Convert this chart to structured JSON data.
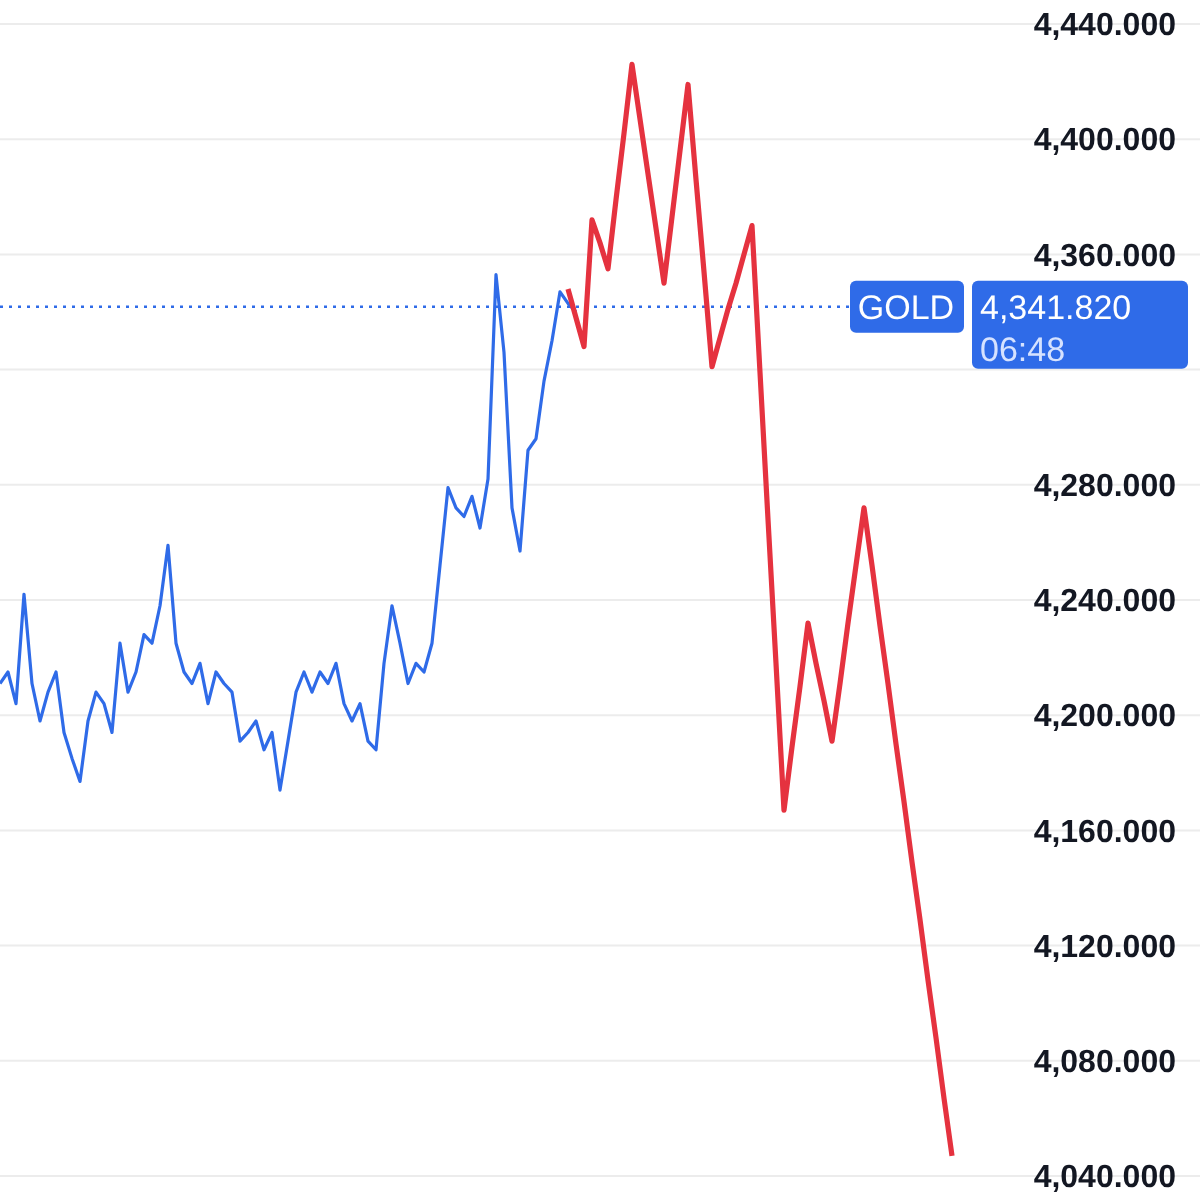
{
  "chart_data": {
    "type": "line",
    "ylim": [
      4040,
      4440
    ],
    "categories": [
      null,
      null,
      null,
      null,
      null,
      null,
      null,
      null,
      null,
      null,
      null,
      null,
      null,
      null,
      null,
      null,
      null,
      null,
      null,
      null,
      null,
      null,
      null,
      null,
      null,
      null,
      null,
      null,
      null,
      null,
      null,
      null,
      null,
      null,
      null,
      null,
      null,
      null,
      null,
      null,
      null,
      null,
      null,
      null,
      null,
      null,
      null,
      null,
      null,
      null,
      null,
      null,
      null,
      null,
      null,
      null,
      null,
      null,
      null,
      null,
      null,
      null,
      null,
      null,
      null,
      null,
      null,
      null,
      null,
      null,
      null,
      null,
      null,
      null,
      null,
      null,
      null,
      null,
      null,
      null,
      null,
      null,
      null,
      null,
      null,
      null,
      null,
      null,
      null,
      null,
      null,
      null,
      null,
      null,
      null,
      null,
      null,
      null,
      null,
      null,
      null,
      null,
      null,
      null,
      null,
      null,
      null,
      null,
      null,
      null,
      null,
      null,
      null,
      null,
      null,
      null,
      null,
      null,
      null,
      null,
      null,
      null,
      null,
      null,
      null,
      null,
      null,
      null,
      null,
      null,
      null,
      null,
      null,
      null,
      null,
      null,
      null,
      null,
      null,
      null,
      null,
      null,
      null,
      null,
      null,
      null,
      null,
      null,
      null,
      null,
      null
    ],
    "yticks": [
      {
        "value": 4040,
        "label": "4,040.000"
      },
      {
        "value": 4080,
        "label": "4,080.000"
      },
      {
        "value": 4120,
        "label": "4,120.000"
      },
      {
        "value": 4160,
        "label": "4,160.000"
      },
      {
        "value": 4200,
        "label": "4,200.000"
      },
      {
        "value": 4240,
        "label": "4,240.000"
      },
      {
        "value": 4280,
        "label": "4,280.000"
      },
      {
        "value": 4320,
        "label": null
      },
      {
        "value": 4360,
        "label": "4,360.000"
      },
      {
        "value": 4400,
        "label": "4,400.000"
      },
      {
        "value": 4440,
        "label": "4,440.000"
      }
    ],
    "tick_labels": "y",
    "grid": "y",
    "marker": "none",
    "line_style": "solid",
    "series": [
      {
        "color": "#2f6be8",
        "values": [
          4211,
          4215,
          4204,
          4242,
          4211,
          4198,
          4208,
          4215,
          4194,
          4185,
          4177,
          4198,
          4208,
          4204,
          4194,
          4225,
          4208,
          4215,
          4228,
          4225,
          4238,
          4259,
          4225,
          4215,
          4211,
          4218,
          4204,
          4215,
          4211,
          4208,
          4191,
          4194,
          4198,
          4188,
          4194,
          4174,
          4191,
          4208,
          4215,
          4208,
          4215,
          4211,
          4218,
          4204,
          4198,
          4204,
          4191,
          4188,
          4218,
          4238,
          4225,
          4211,
          4218,
          4215,
          4225,
          4252,
          4279,
          4272,
          4269,
          4276,
          4265,
          4282,
          4353,
          4326,
          4272,
          4257,
          4292,
          4296,
          4316,
          4330,
          4347,
          4343,
          4340,
          null,
          null,
          null,
          null,
          null,
          null,
          null,
          null,
          null,
          null,
          null,
          null,
          null,
          null,
          null,
          null,
          null,
          null,
          null,
          null,
          null,
          null,
          null,
          null,
          null,
          null,
          null,
          null,
          null,
          null,
          null,
          null,
          null,
          null,
          null,
          null,
          null,
          null,
          null,
          null,
          null,
          null,
          null,
          null,
          null,
          null,
          null,
          null,
          null,
          null,
          null,
          null,
          null,
          null,
          null,
          null,
          null,
          null,
          null,
          null,
          null,
          null,
          null,
          null,
          null,
          null,
          null,
          null,
          null,
          null,
          null,
          null,
          null,
          null,
          null,
          null,
          null,
          null
        ]
      },
      {
        "color": "#e5323f",
        "values": [
          null,
          null,
          null,
          null,
          null,
          null,
          null,
          null,
          null,
          null,
          null,
          null,
          null,
          null,
          null,
          null,
          null,
          null,
          null,
          null,
          null,
          null,
          null,
          null,
          null,
          null,
          null,
          null,
          null,
          null,
          null,
          null,
          null,
          null,
          null,
          null,
          null,
          null,
          null,
          null,
          null,
          null,
          null,
          null,
          null,
          null,
          null,
          null,
          null,
          null,
          null,
          null,
          null,
          null,
          null,
          null,
          null,
          null,
          null,
          null,
          null,
          null,
          null,
          null,
          null,
          null,
          null,
          null,
          null,
          null,
          null,
          4348,
          4338,
          4328,
          4372,
          4364,
          4355,
          4379,
          4402,
          4426,
          4407,
          4388,
          4369,
          4350,
          4373,
          4396,
          4419,
          4386,
          4354,
          4321,
          4331,
          4341,
          4350,
          4360,
          4370,
          4319,
          4268,
          4218,
          4167,
          4189,
          4210,
          4232,
          4218,
          4205,
          4191,
          4211,
          4232,
          4252,
          4272,
          4252,
          4231,
          4211,
          4190,
          4170,
          4149,
          4129,
          4108,
          4088,
          4067,
          4047,
          null,
          null,
          null,
          null,
          null,
          null,
          null,
          null,
          null,
          null,
          null,
          null,
          null,
          null,
          null,
          null,
          null,
          null,
          null,
          null,
          null,
          null,
          null,
          null,
          null,
          null,
          null,
          null,
          null,
          null,
          null
        ]
      }
    ],
    "ref_lines": [
      {
        "axis": "y",
        "value": 4341.82,
        "label": "GOLD",
        "color": "#2f6be8",
        "line_style": "dotted"
      }
    ],
    "annotations": [
      "4,341.820",
      "06:48"
    ]
  }
}
